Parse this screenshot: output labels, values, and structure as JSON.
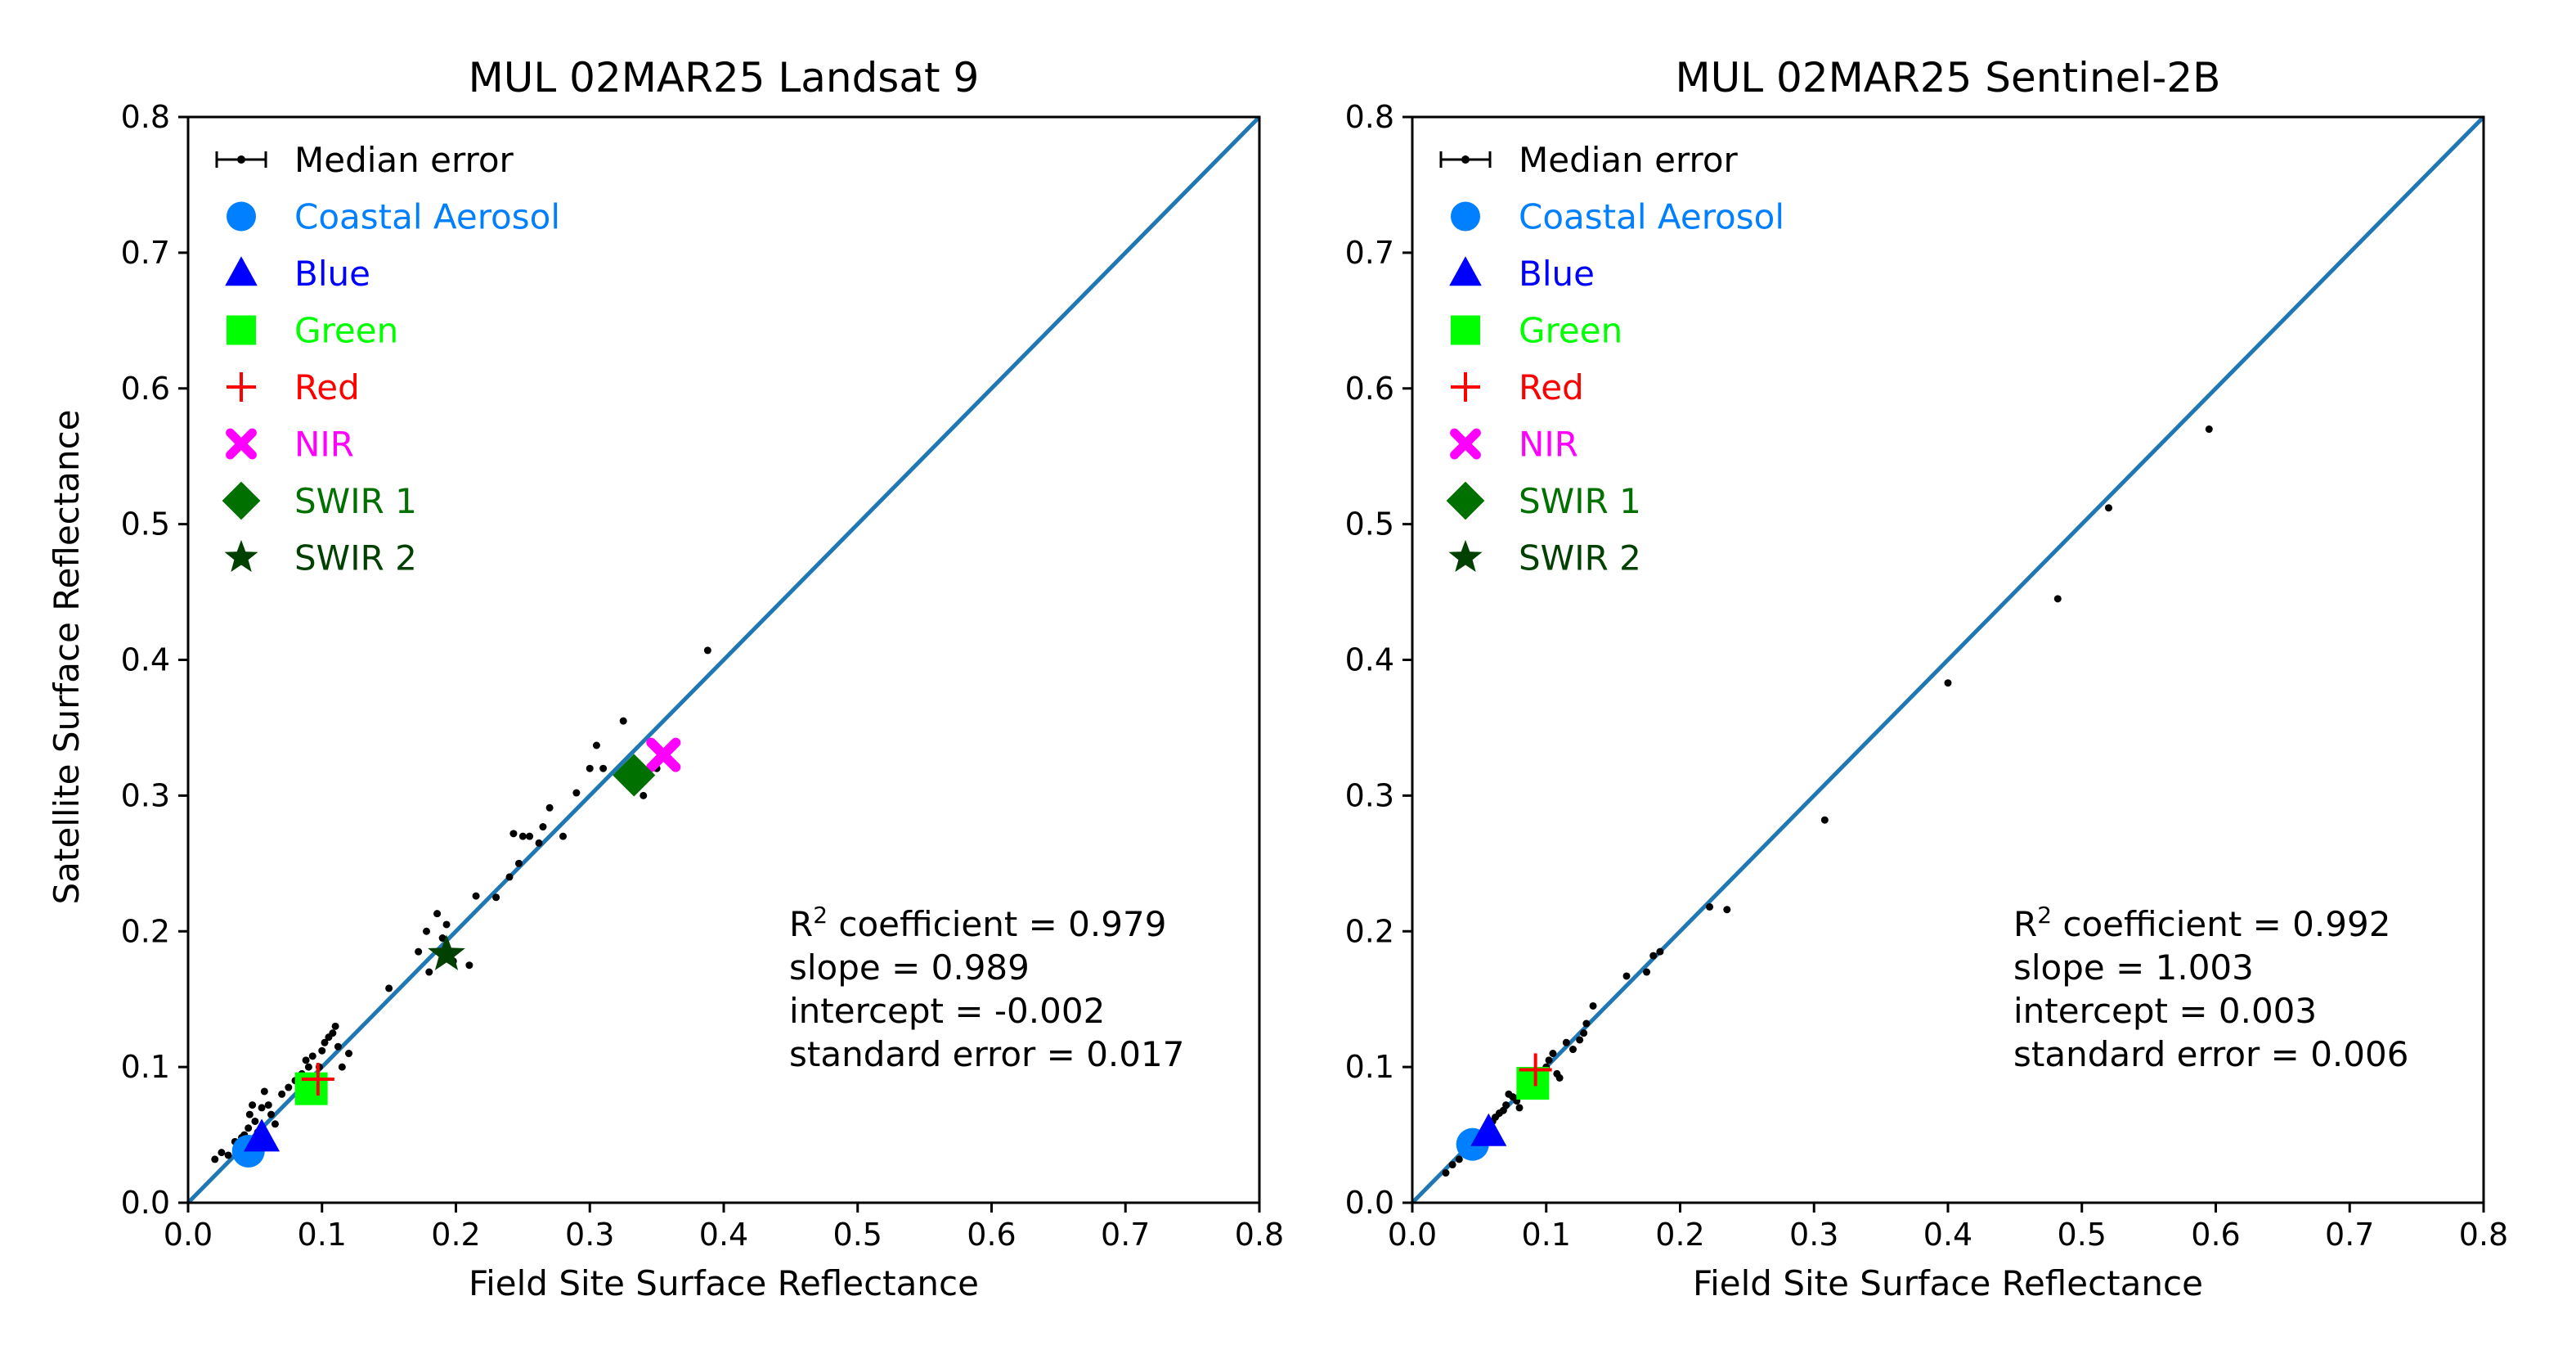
{
  "chart_data": [
    {
      "type": "scatter",
      "title": "MUL 02MAR25 Landsat 9",
      "xlabel": "Field Site Surface Reflectance",
      "ylabel": "Satellite Surface Reflectance",
      "xlim": [
        0.0,
        0.8
      ],
      "ylim": [
        0.0,
        0.8
      ],
      "xticks": [
        "0.0",
        "0.1",
        "0.2",
        "0.3",
        "0.4",
        "0.5",
        "0.6",
        "0.7",
        "0.8"
      ],
      "yticks": [
        "0.0",
        "0.1",
        "0.2",
        "0.3",
        "0.4",
        "0.5",
        "0.6",
        "0.7",
        "0.8"
      ],
      "grid": false,
      "legend_position": "top-left",
      "one_to_one_line": {
        "x": [
          0.0,
          0.8
        ],
        "y": [
          0.0,
          0.8
        ],
        "color": "#1f77b4"
      },
      "legend": [
        {
          "label": "Median error",
          "marker": "errorbar",
          "color": "#000000"
        },
        {
          "label": "Coastal Aerosol",
          "marker": "circle",
          "color": "#0080ff"
        },
        {
          "label": "Blue",
          "marker": "triangle",
          "color": "#0000ff"
        },
        {
          "label": "Green",
          "marker": "square",
          "color": "#00ff00"
        },
        {
          "label": "Red",
          "marker": "plus",
          "color": "#ff0000"
        },
        {
          "label": "NIR",
          "marker": "x",
          "color": "#ff00ff"
        },
        {
          "label": "SWIR 1",
          "marker": "diamond",
          "color": "#007000"
        },
        {
          "label": "SWIR 2",
          "marker": "star",
          "color": "#004000"
        }
      ],
      "band_points": [
        {
          "band": "Coastal Aerosol",
          "x": 0.045,
          "y": 0.038
        },
        {
          "band": "Blue",
          "x": 0.055,
          "y": 0.048
        },
        {
          "band": "Green",
          "x": 0.092,
          "y": 0.084
        },
        {
          "band": "Red",
          "x": 0.097,
          "y": 0.091
        },
        {
          "band": "NIR",
          "x": 0.355,
          "y": 0.33
        },
        {
          "band": "SWIR 1",
          "x": 0.333,
          "y": 0.315
        },
        {
          "band": "SWIR 2",
          "x": 0.193,
          "y": 0.183
        }
      ],
      "median_points": [
        [
          0.02,
          0.032
        ],
        [
          0.025,
          0.037
        ],
        [
          0.03,
          0.035
        ],
        [
          0.035,
          0.045
        ],
        [
          0.038,
          0.04
        ],
        [
          0.04,
          0.048
        ],
        [
          0.042,
          0.05
        ],
        [
          0.045,
          0.055
        ],
        [
          0.046,
          0.065
        ],
        [
          0.048,
          0.072
        ],
        [
          0.05,
          0.06
        ],
        [
          0.052,
          0.052
        ],
        [
          0.055,
          0.07
        ],
        [
          0.057,
          0.082
        ],
        [
          0.06,
          0.072
        ],
        [
          0.062,
          0.065
        ],
        [
          0.065,
          0.058
        ],
        [
          0.07,
          0.08
        ],
        [
          0.075,
          0.085
        ],
        [
          0.08,
          0.09
        ],
        [
          0.085,
          0.095
        ],
        [
          0.088,
          0.105
        ],
        [
          0.09,
          0.1
        ],
        [
          0.093,
          0.108
        ],
        [
          0.095,
          0.09
        ],
        [
          0.098,
          0.1
        ],
        [
          0.1,
          0.112
        ],
        [
          0.102,
          0.118
        ],
        [
          0.105,
          0.122
        ],
        [
          0.108,
          0.125
        ],
        [
          0.11,
          0.13
        ],
        [
          0.112,
          0.115
        ],
        [
          0.115,
          0.1
        ],
        [
          0.12,
          0.11
        ],
        [
          0.15,
          0.158
        ],
        [
          0.172,
          0.185
        ],
        [
          0.178,
          0.2
        ],
        [
          0.18,
          0.17
        ],
        [
          0.186,
          0.213
        ],
        [
          0.19,
          0.195
        ],
        [
          0.193,
          0.205
        ],
        [
          0.198,
          0.178
        ],
        [
          0.21,
          0.175
        ],
        [
          0.215,
          0.226
        ],
        [
          0.23,
          0.225
        ],
        [
          0.24,
          0.24
        ],
        [
          0.243,
          0.272
        ],
        [
          0.247,
          0.25
        ],
        [
          0.25,
          0.27
        ],
        [
          0.255,
          0.27
        ],
        [
          0.262,
          0.265
        ],
        [
          0.265,
          0.277
        ],
        [
          0.27,
          0.291
        ],
        [
          0.28,
          0.27
        ],
        [
          0.29,
          0.302
        ],
        [
          0.3,
          0.32
        ],
        [
          0.305,
          0.337
        ],
        [
          0.31,
          0.32
        ],
        [
          0.325,
          0.355
        ],
        [
          0.332,
          0.31
        ],
        [
          0.34,
          0.3
        ],
        [
          0.35,
          0.32
        ],
        [
          0.388,
          0.407
        ]
      ],
      "annotation": {
        "r2_label": "R",
        "r2_sup": "2",
        "r2_rest": " coefficient = 0.979",
        "slope": "slope = 0.989",
        "intercept": "intercept = -0.002",
        "stderr": "standard error = 0.017"
      }
    },
    {
      "type": "scatter",
      "title": "MUL 02MAR25 Sentinel-2B",
      "xlabel": "Field Site Surface Reflectance",
      "ylabel": "",
      "xlim": [
        0.0,
        0.8
      ],
      "ylim": [
        0.0,
        0.8
      ],
      "xticks": [
        "0.0",
        "0.1",
        "0.2",
        "0.3",
        "0.4",
        "0.5",
        "0.6",
        "0.7",
        "0.8"
      ],
      "yticks": [
        "0.0",
        "0.1",
        "0.2",
        "0.3",
        "0.4",
        "0.5",
        "0.6",
        "0.7",
        "0.8"
      ],
      "grid": false,
      "legend_position": "top-left",
      "one_to_one_line": {
        "x": [
          0.0,
          0.8
        ],
        "y": [
          0.0,
          0.8
        ],
        "color": "#1f77b4"
      },
      "legend": [
        {
          "label": "Median error",
          "marker": "errorbar",
          "color": "#000000"
        },
        {
          "label": "Coastal Aerosol",
          "marker": "circle",
          "color": "#0080ff"
        },
        {
          "label": "Blue",
          "marker": "triangle",
          "color": "#0000ff"
        },
        {
          "label": "Green",
          "marker": "square",
          "color": "#00ff00"
        },
        {
          "label": "Red",
          "marker": "plus",
          "color": "#ff0000"
        },
        {
          "label": "NIR",
          "marker": "x",
          "color": "#ff00ff"
        },
        {
          "label": "SWIR 1",
          "marker": "diamond",
          "color": "#007000"
        },
        {
          "label": "SWIR 2",
          "marker": "star",
          "color": "#004000"
        }
      ],
      "band_points": [
        {
          "band": "Coastal Aerosol",
          "x": 0.045,
          "y": 0.043
        },
        {
          "band": "Blue",
          "x": 0.057,
          "y": 0.052
        },
        {
          "band": "Green",
          "x": 0.09,
          "y": 0.088
        },
        {
          "band": "Red",
          "x": 0.092,
          "y": 0.098
        }
      ],
      "median_points": [
        [
          0.025,
          0.022
        ],
        [
          0.03,
          0.028
        ],
        [
          0.035,
          0.032
        ],
        [
          0.038,
          0.038
        ],
        [
          0.04,
          0.042
        ],
        [
          0.045,
          0.045
        ],
        [
          0.048,
          0.048
        ],
        [
          0.052,
          0.05
        ],
        [
          0.055,
          0.055
        ],
        [
          0.058,
          0.058
        ],
        [
          0.06,
          0.06
        ],
        [
          0.062,
          0.063
        ],
        [
          0.065,
          0.066
        ],
        [
          0.068,
          0.068
        ],
        [
          0.07,
          0.072
        ],
        [
          0.072,
          0.08
        ],
        [
          0.075,
          0.078
        ],
        [
          0.078,
          0.075
        ],
        [
          0.08,
          0.07
        ],
        [
          0.085,
          0.085
        ],
        [
          0.09,
          0.09
        ],
        [
          0.095,
          0.095
        ],
        [
          0.1,
          0.1
        ],
        [
          0.102,
          0.105
        ],
        [
          0.105,
          0.11
        ],
        [
          0.108,
          0.095
        ],
        [
          0.11,
          0.092
        ],
        [
          0.115,
          0.118
        ],
        [
          0.12,
          0.113
        ],
        [
          0.125,
          0.12
        ],
        [
          0.128,
          0.125
        ],
        [
          0.13,
          0.132
        ],
        [
          0.135,
          0.145
        ],
        [
          0.16,
          0.167
        ],
        [
          0.175,
          0.17
        ],
        [
          0.18,
          0.182
        ],
        [
          0.185,
          0.185
        ],
        [
          0.222,
          0.218
        ],
        [
          0.235,
          0.216
        ],
        [
          0.308,
          0.282
        ],
        [
          0.4,
          0.383
        ],
        [
          0.482,
          0.445
        ],
        [
          0.52,
          0.512
        ],
        [
          0.595,
          0.57
        ]
      ],
      "annotation": {
        "r2_label": "R",
        "r2_sup": "2",
        "r2_rest": " coefficient = 0.992",
        "slope": "slope = 1.003",
        "intercept": "intercept = 0.003",
        "stderr": "standard error = 0.006"
      }
    }
  ]
}
